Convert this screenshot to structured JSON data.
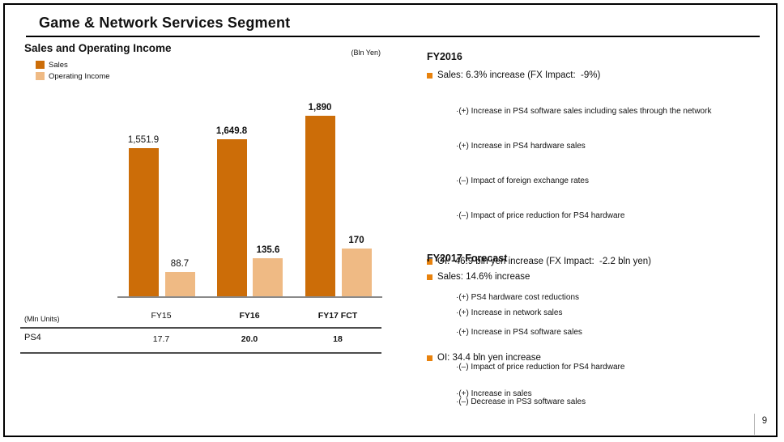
{
  "slide": {
    "title": "Game & Network Services Segment",
    "page_number": "9"
  },
  "left_panel": {
    "heading": "Sales and Operating Income",
    "unit_label": "(Bln Yen)",
    "legend": [
      {
        "label": "Sales"
      },
      {
        "label": "Operating Income"
      }
    ]
  },
  "chart_data": {
    "type": "bar",
    "title": "Sales and Operating Income",
    "unit": "Bln Yen",
    "categories": [
      "FY15",
      "FY16",
      "FY17 FCT"
    ],
    "emphasized_categories": [
      false,
      true,
      true
    ],
    "series": [
      {
        "name": "Sales",
        "color": "#CC6D08",
        "axis_max": 2000,
        "values": [
          1551.9,
          1649.8,
          1890
        ],
        "value_labels": [
          "1,551.9",
          "1,649.8",
          "1,890"
        ]
      },
      {
        "name": "Operating Income",
        "color": "#EFBA84",
        "axis_max": 660,
        "values": [
          88.7,
          135.6,
          170
        ],
        "value_labels": [
          "88.7",
          "135.6",
          "170"
        ]
      }
    ],
    "grid": false,
    "legend_position": "top-left",
    "note": "Operating Income bars drawn on a secondary hidden scale"
  },
  "units_table": {
    "unit_label": "(Mln Units)",
    "columns": [
      "FY15",
      "FY16",
      "FY17 FCT"
    ],
    "rows": [
      {
        "label": "PS4",
        "values": [
          "17.7",
          "20.0",
          "18"
        ]
      }
    ]
  },
  "fy2016": {
    "heading": "FY2016",
    "bullets": [
      {
        "text": "Sales: 6.3% increase (FX Impact:  -9%)",
        "sub": [
          "·(+) Increase in PS4 software sales including sales through the network",
          "·(+) Increase in PS4 hardware sales",
          "·(–) Impact of foreign exchange rates",
          "·(–) Impact of price reduction for PS4 hardware"
        ]
      },
      {
        "text": "OI:  46.9 bln yen increase (FX Impact:  -2.2 bln yen)",
        "sub": [
          "·(+) PS4 hardware cost reductions",
          "·(+) Increase in PS4 software sales",
          "·(–) Impact of price reduction for PS4 hardware",
          "·(–) Decrease in PS3 software sales"
        ]
      }
    ]
  },
  "fy2017": {
    "heading": "FY2017 Forecast",
    "bullets": [
      {
        "text": "Sales: 14.6% increase",
        "sub": [
          "·(+) Increase in network sales"
        ]
      },
      {
        "text": "OI: 34.4 bln yen increase",
        "sub": [
          "·(+) Increase in sales"
        ]
      }
    ]
  },
  "colors": {
    "sales_bar": "#CC6D08",
    "operating_income_bar": "#EFBA84",
    "bullet_square": "#E8820D",
    "axis_line": "#8A8A8A",
    "table_line": "#4D4D4D",
    "title_rule": "#000000"
  }
}
